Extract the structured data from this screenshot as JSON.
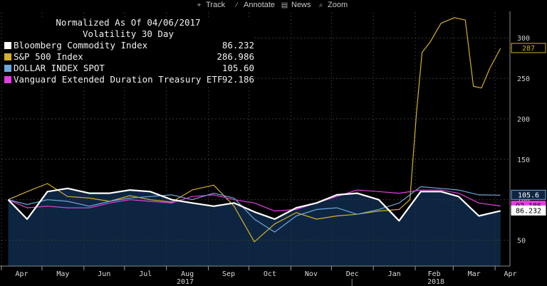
{
  "toolbar": {
    "items": [
      {
        "label": "Track",
        "icon": "crosshair-icon"
      },
      {
        "label": "Annotate",
        "icon": "pencil-icon"
      },
      {
        "label": "News",
        "icon": "news-icon"
      },
      {
        "label": "Zoom",
        "icon": "magnifier-icon"
      }
    ]
  },
  "legend": {
    "title": "Normalized As Of 04/06/2017",
    "subtitle": "Volatility 30 Day",
    "entries": [
      {
        "name": "Bloomberg Commodity Index",
        "value": "86.232",
        "color": "#ffffff"
      },
      {
        "name": "S&P 500 Index",
        "value": "286.986",
        "color": "#d4b02a"
      },
      {
        "name": "DOLLAR INDEX SPOT",
        "value": "105.60",
        "color": "#6fa8dc"
      },
      {
        "name": "Vanguard Extended Duration Treasury ETF",
        "value": "92.186",
        "color": "#e040e0"
      }
    ]
  },
  "chart_data": {
    "type": "line",
    "title": "Normalized As Of 04/06/2017",
    "subtitle": "Volatility 30 Day",
    "xlabel": "",
    "ylabel": "",
    "x_ticks": [
      "Apr",
      "May",
      "Jun",
      "Jul",
      "Aug",
      "Sep",
      "Oct",
      "Nov",
      "Dec",
      "Jan",
      "Feb",
      "Mar",
      "Apr"
    ],
    "x_years": [
      "2017",
      "2018"
    ],
    "y_ticks": [
      50,
      100,
      150,
      200,
      250,
      300
    ],
    "ylim": [
      18,
      345
    ],
    "grid": true,
    "legend_position": "top-left",
    "series": [
      {
        "name": "S&P 500 Index",
        "color": "#d4b02a",
        "x": [
          "2017-04-06",
          "2017-04-20",
          "2017-05-05",
          "2017-05-20",
          "2017-06-05",
          "2017-06-20",
          "2017-07-05",
          "2017-07-20",
          "2017-08-05",
          "2017-08-20",
          "2017-09-05",
          "2017-09-20",
          "2017-10-05",
          "2017-10-20",
          "2017-11-05",
          "2017-11-20",
          "2017-12-05",
          "2017-12-20",
          "2018-01-05",
          "2018-01-20",
          "2018-01-28",
          "2018-02-02",
          "2018-02-06",
          "2018-02-12",
          "2018-02-20",
          "2018-03-02",
          "2018-03-10",
          "2018-03-16",
          "2018-03-22",
          "2018-03-28",
          "2018-04-05"
        ],
        "y": [
          100,
          110,
          120,
          104,
          102,
          98,
          105,
          100,
          97,
          112,
          118,
          92,
          48,
          70,
          84,
          76,
          80,
          82,
          86,
          88,
          100,
          210,
          282,
          295,
          318,
          325,
          322,
          240,
          238,
          262,
          287
        ]
      },
      {
        "name": "Bloomberg Commodity Index",
        "color": "#ffffff",
        "x": [
          "2017-04-06",
          "2017-04-20",
          "2017-05-05",
          "2017-05-20",
          "2017-06-05",
          "2017-06-20",
          "2017-07-05",
          "2017-07-20",
          "2017-08-05",
          "2017-08-20",
          "2017-09-05",
          "2017-09-20",
          "2017-10-05",
          "2017-10-20",
          "2017-11-05",
          "2017-11-20",
          "2017-12-05",
          "2017-12-20",
          "2018-01-05",
          "2018-01-20",
          "2018-02-05",
          "2018-02-20",
          "2018-03-05",
          "2018-03-20",
          "2018-04-05"
        ],
        "y": [
          100,
          76,
          110,
          114,
          108,
          108,
          112,
          110,
          100,
          96,
          92,
          96,
          85,
          76,
          90,
          96,
          106,
          108,
          100,
          74,
          110,
          110,
          104,
          80,
          86.232
        ]
      },
      {
        "name": "DOLLAR INDEX SPOT",
        "color": "#6fa8dc",
        "x": [
          "2017-04-06",
          "2017-04-20",
          "2017-05-05",
          "2017-05-20",
          "2017-06-05",
          "2017-06-20",
          "2017-07-05",
          "2017-07-20",
          "2017-08-05",
          "2017-08-20",
          "2017-09-05",
          "2017-09-20",
          "2017-10-05",
          "2017-10-20",
          "2017-11-05",
          "2017-11-20",
          "2017-12-05",
          "2017-12-20",
          "2018-01-05",
          "2018-01-20",
          "2018-02-05",
          "2018-02-20",
          "2018-03-05",
          "2018-03-20",
          "2018-04-05"
        ],
        "y": [
          100,
          94,
          100,
          98,
          92,
          98,
          102,
          104,
          106,
          100,
          108,
          102,
          76,
          60,
          80,
          88,
          90,
          82,
          88,
          96,
          116,
          114,
          112,
          106,
          105.6
        ]
      },
      {
        "name": "Vanguard Extended Duration Treasury ETF",
        "color": "#e040e0",
        "x": [
          "2017-04-06",
          "2017-04-20",
          "2017-05-05",
          "2017-05-20",
          "2017-06-05",
          "2017-06-20",
          "2017-07-05",
          "2017-07-20",
          "2017-08-05",
          "2017-08-20",
          "2017-09-05",
          "2017-09-20",
          "2017-10-05",
          "2017-10-20",
          "2017-11-05",
          "2017-11-20",
          "2017-12-05",
          "2017-12-20",
          "2018-01-05",
          "2018-01-20",
          "2018-02-05",
          "2018-02-20",
          "2018-03-05",
          "2018-03-20",
          "2018-04-05"
        ],
        "y": [
          100,
          90,
          92,
          90,
          90,
          96,
          100,
          98,
          96,
          104,
          106,
          100,
          96,
          86,
          88,
          96,
          104,
          112,
          110,
          108,
          112,
          112,
          108,
          96,
          92.186
        ]
      }
    ]
  }
}
